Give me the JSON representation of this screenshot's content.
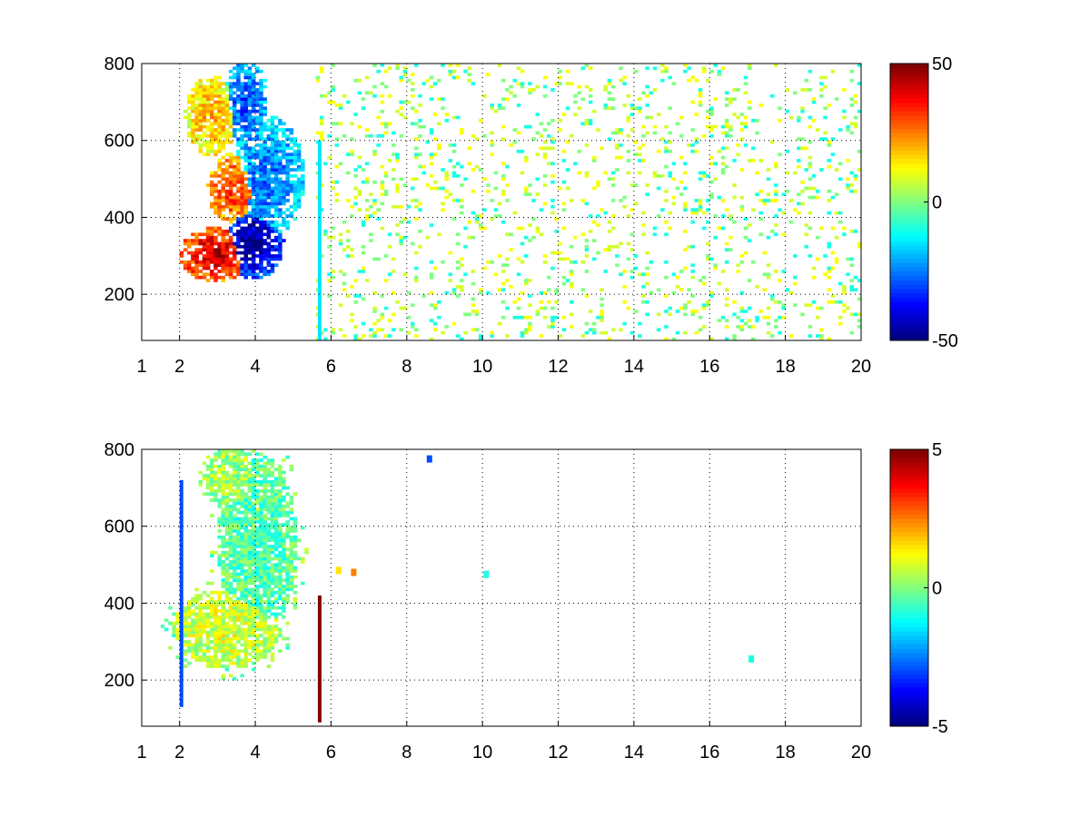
{
  "chart_data": [
    {
      "type": "heatmap",
      "title": "",
      "xlabel": "",
      "ylabel": "",
      "xlim": [
        1,
        20
      ],
      "ylim": [
        80,
        800
      ],
      "x_ticks": [
        1,
        2,
        4,
        6,
        8,
        10,
        12,
        14,
        16,
        18,
        20
      ],
      "x_tick_labels": [
        "1",
        "2",
        "4",
        "6",
        "8",
        "10",
        "12",
        "14",
        "16",
        "18",
        "20"
      ],
      "x_grid": [
        2,
        4,
        6,
        8,
        10,
        12,
        14,
        16,
        18,
        20
      ],
      "y_ticks": [
        200,
        400,
        600,
        800
      ],
      "y_tick_labels": [
        "200",
        "400",
        "600",
        "800"
      ],
      "grid": true,
      "grid_style": "dotted",
      "colormap": "jet",
      "clim": [
        -50,
        50
      ],
      "colorbar_ticks": [
        50,
        0,
        -50
      ],
      "colorbar_tick_labels": [
        "50",
        "0",
        "-50"
      ],
      "features": [
        {
          "kind": "band",
          "x_center": 2.9,
          "y_center": 300,
          "radius_x": 0.85,
          "radius_y": 60,
          "value": 40
        },
        {
          "kind": "band",
          "x_center": 3.9,
          "y_center": 330,
          "radius_x": 0.7,
          "radius_y": 80,
          "value": -45
        },
        {
          "kind": "band",
          "x_center": 2.8,
          "y_center": 660,
          "radius_x": 0.6,
          "radius_y": 90,
          "value": 18
        },
        {
          "kind": "band",
          "x_center": 3.7,
          "y_center": 690,
          "radius_x": 0.5,
          "radius_y": 100,
          "value": -28
        },
        {
          "kind": "band",
          "x_center": 4.3,
          "y_center": 500,
          "radius_x": 0.8,
          "radius_y": 140,
          "value": -25
        },
        {
          "kind": "band",
          "x_center": 3.4,
          "y_center": 470,
          "radius_x": 0.6,
          "radius_y": 80,
          "value": 30
        },
        {
          "kind": "column",
          "x": 5.7,
          "y_from": 80,
          "y_to": 600,
          "value": -15
        }
      ],
      "sparse_noise": {
        "x_range": [
          5.5,
          20
        ],
        "y_range": [
          80,
          800
        ],
        "values": [
          -10,
          0,
          8,
          12
        ]
      }
    },
    {
      "type": "heatmap",
      "title": "",
      "xlabel": "",
      "ylabel": "",
      "xlim": [
        1,
        20
      ],
      "ylim": [
        80,
        800
      ],
      "x_ticks": [
        1,
        2,
        4,
        6,
        8,
        10,
        12,
        14,
        16,
        18,
        20
      ],
      "x_tick_labels": [
        "1",
        "2",
        "4",
        "6",
        "8",
        "10",
        "12",
        "14",
        "16",
        "18",
        "20"
      ],
      "x_grid": [
        2,
        4,
        6,
        8,
        10,
        12,
        14,
        16,
        18,
        20
      ],
      "y_ticks": [
        200,
        400,
        600,
        800
      ],
      "y_tick_labels": [
        "200",
        "400",
        "600",
        "800"
      ],
      "grid": true,
      "grid_style": "dotted",
      "colormap": "jet",
      "clim": [
        -5,
        5
      ],
      "colorbar_ticks": [
        5,
        0,
        -5
      ],
      "colorbar_tick_labels": [
        "5",
        "0",
        "-5"
      ],
      "features": [
        {
          "kind": "band",
          "x_center": 3.2,
          "y_center": 330,
          "radius_x": 1.2,
          "radius_y": 90,
          "value": 0.8
        },
        {
          "kind": "band",
          "x_center": 4.0,
          "y_center": 550,
          "radius_x": 0.9,
          "radius_y": 200,
          "value": -0.5
        },
        {
          "kind": "band",
          "x_center": 3.3,
          "y_center": 720,
          "radius_x": 0.6,
          "radius_y": 70,
          "value": 0.3
        },
        {
          "kind": "column",
          "x": 5.7,
          "y_from": 90,
          "y_to": 420,
          "value": 5
        },
        {
          "kind": "column",
          "x": 2.05,
          "y_from": 130,
          "y_to": 720,
          "value": -3
        },
        {
          "kind": "patch",
          "x": 6.6,
          "y": 480,
          "value": 2.5
        },
        {
          "kind": "patch",
          "x": 6.2,
          "y": 485,
          "value": 1.5
        },
        {
          "kind": "patch",
          "x": 8.6,
          "y": 775,
          "value": -3
        },
        {
          "kind": "patch",
          "x": 10.1,
          "y": 475,
          "value": -1
        },
        {
          "kind": "patch",
          "x": 17.1,
          "y": 255,
          "value": -1
        }
      ]
    }
  ]
}
